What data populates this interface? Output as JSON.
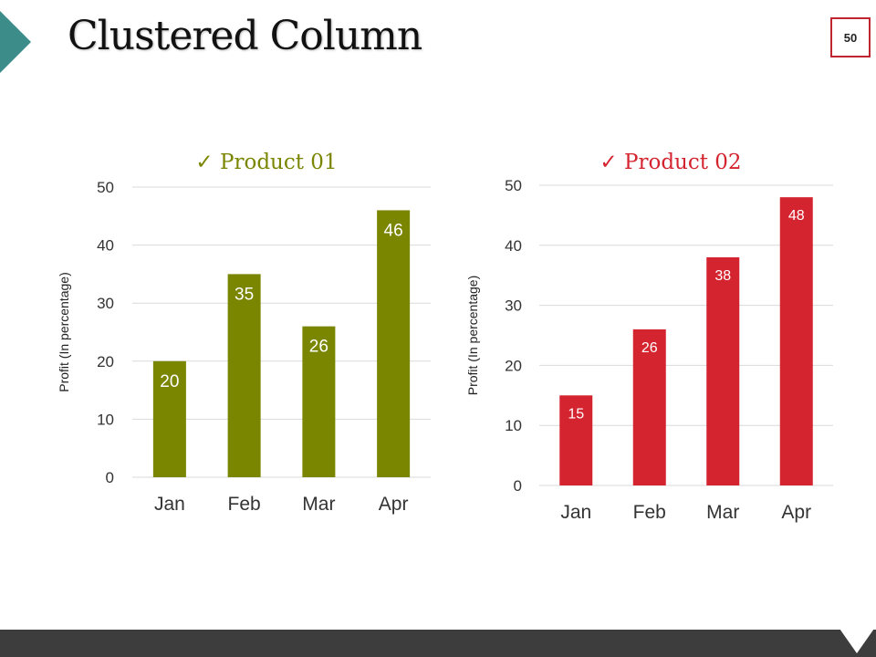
{
  "slide": {
    "title": "Clustered Column",
    "page_number": "50"
  },
  "colors": {
    "product1": "#7a8500",
    "product2": "#d42430",
    "accent_teal": "#3c8c8a",
    "footer": "#3d3d3d",
    "badge_border": "#c0262e"
  },
  "chart_data": [
    {
      "type": "bar",
      "title": "Product 01",
      "check_mark": "✓",
      "categories": [
        "Jan",
        "Feb",
        "Mar",
        "Apr"
      ],
      "series": [
        {
          "name": "Product 01",
          "values": [
            20,
            35,
            26,
            46
          ]
        }
      ],
      "xlabel": "",
      "ylabel": "Profit  (In percentage)",
      "ylim": [
        0,
        50
      ],
      "yticks": [
        0,
        10,
        20,
        30,
        40,
        50
      ],
      "grid": true,
      "legend": "none",
      "data_labels": true
    },
    {
      "type": "bar",
      "title": "Product 02",
      "check_mark": "✓",
      "categories": [
        "Jan",
        "Feb",
        "Mar",
        "Apr"
      ],
      "series": [
        {
          "name": "Product 02",
          "values": [
            15,
            26,
            38,
            48
          ]
        }
      ],
      "xlabel": "",
      "ylabel": "Profit  (In percentage)",
      "ylim": [
        0,
        50
      ],
      "yticks": [
        0,
        10,
        20,
        30,
        40,
        50
      ],
      "grid": true,
      "legend": "none",
      "data_labels": true
    }
  ]
}
